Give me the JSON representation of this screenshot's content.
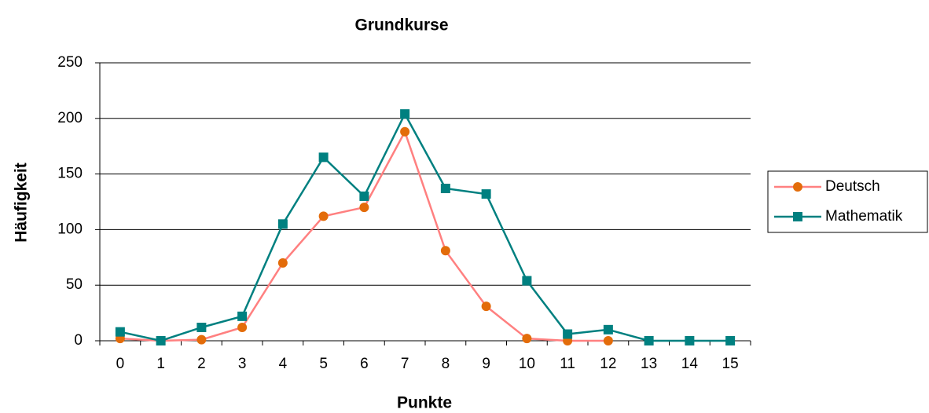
{
  "chart_data": {
    "type": "line",
    "title": "Grundkurse",
    "x_label": "Punkte",
    "y_label": "Häufigkeit",
    "categories": [
      "0",
      "1",
      "2",
      "3",
      "4",
      "5",
      "6",
      "7",
      "8",
      "9",
      "10",
      "11",
      "12",
      "13",
      "14",
      "15"
    ],
    "series": [
      {
        "name": "Deutsch",
        "color": "#ff8080",
        "marker_color": "#e36c0a",
        "marker": "circle",
        "values": [
          2,
          0,
          1,
          12,
          70,
          112,
          120,
          188,
          81,
          31,
          2,
          0,
          0,
          null,
          null,
          null
        ]
      },
      {
        "name": "Mathematik",
        "color": "#008080",
        "marker_color": "#008080",
        "marker": "square",
        "values": [
          8,
          0,
          12,
          22,
          105,
          165,
          130,
          204,
          137,
          132,
          54,
          6,
          10,
          0,
          0,
          0
        ]
      }
    ],
    "ylim": [
      0,
      250
    ],
    "yticks": [
      0,
      50,
      100,
      150,
      200,
      250
    ],
    "grid": true,
    "legend": "right"
  }
}
